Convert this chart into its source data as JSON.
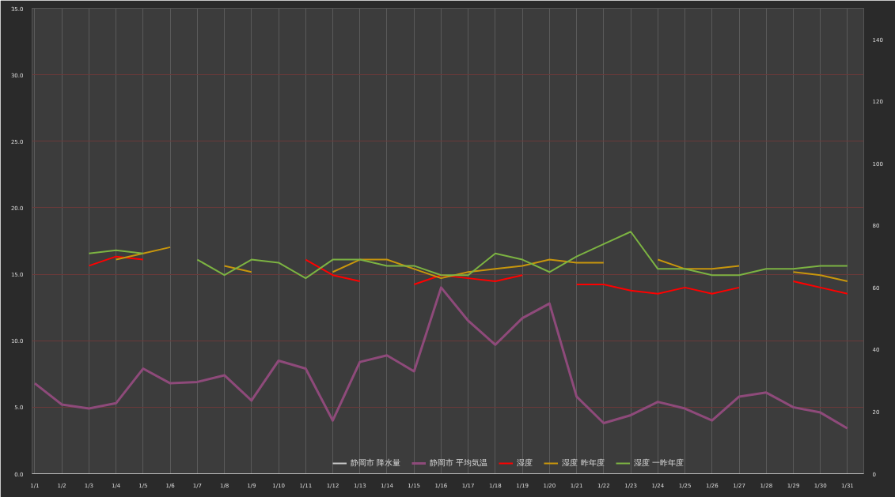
{
  "chart_data": {
    "type": "line",
    "categories": [
      "1/1",
      "1/2",
      "1/3",
      "1/4",
      "1/5",
      "1/6",
      "1/7",
      "1/8",
      "1/9",
      "1/10",
      "1/11",
      "1/12",
      "1/13",
      "1/14",
      "1/15",
      "1/16",
      "1/17",
      "1/18",
      "1/19",
      "1/20",
      "1/21",
      "1/22",
      "1/23",
      "1/24",
      "1/25",
      "1/26",
      "1/27",
      "1/28",
      "1/29",
      "1/30",
      "1/31"
    ],
    "series": [
      {
        "name": "静岡市 降水量",
        "color": "#c8c8c8",
        "values": [
          null,
          null,
          null,
          null,
          null,
          null,
          null,
          null,
          null,
          null,
          null,
          null,
          null,
          null,
          null,
          null,
          null,
          null,
          null,
          null,
          null,
          null,
          null,
          null,
          null,
          null,
          null,
          null,
          null,
          null,
          null
        ]
      },
      {
        "name": "静岡市 平均気温",
        "color": "#8e4a7a",
        "values": [
          6.8,
          5.2,
          4.9,
          5.3,
          7.9,
          6.8,
          6.9,
          7.4,
          5.5,
          8.5,
          7.9,
          4.0,
          8.4,
          8.9,
          7.7,
          14.0,
          11.5,
          9.7,
          11.7,
          12.8,
          5.8,
          3.8,
          4.4,
          5.4,
          4.9,
          4.0,
          5.8,
          6.1,
          5.0,
          4.6,
          3.4
        ]
      },
      {
        "name": "湿度",
        "color": "#ff0000",
        "axis": "y2",
        "values": [
          null,
          null,
          67,
          70,
          69,
          null,
          null,
          null,
          null,
          null,
          69,
          64,
          62,
          null,
          61,
          64,
          63,
          62,
          64,
          null,
          61,
          61,
          59,
          58,
          60,
          58,
          60,
          null,
          62,
          60,
          58
        ]
      },
      {
        "name": "湿度 昨年度",
        "color": "#c8960c",
        "axis": "y2",
        "values": [
          null,
          null,
          null,
          69,
          71,
          73,
          null,
          67,
          65,
          null,
          null,
          65,
          69,
          69,
          66,
          63,
          65,
          66,
          67,
          69,
          68,
          68,
          null,
          69,
          66,
          66,
          67,
          null,
          65,
          64,
          62
        ]
      },
      {
        "name": "湿度 一昨年度",
        "color": "#7cb342",
        "axis": "y2",
        "values": [
          null,
          null,
          71,
          72,
          71,
          null,
          69,
          64,
          69,
          68,
          63,
          69,
          69,
          67,
          67,
          64,
          64,
          71,
          69,
          65,
          70,
          74,
          78,
          66,
          66,
          64,
          64,
          66,
          66,
          67,
          67
        ]
      }
    ],
    "ylim": [
      0,
      35
    ],
    "yticks": [
      {
        "value": 0,
        "label": "0.0"
      },
      {
        "value": 5,
        "label": "5.0"
      },
      {
        "value": 10,
        "label": "10.0"
      },
      {
        "value": 15,
        "label": "15.0"
      },
      {
        "value": 20,
        "label": "20.0"
      },
      {
        "value": 25,
        "label": "25.0"
      },
      {
        "value": 30,
        "label": "30.0"
      },
      {
        "value": 35,
        "label": "35.0"
      }
    ],
    "y2lim": [
      0,
      150
    ],
    "y2ticks": [
      0,
      20,
      40,
      60,
      80,
      100,
      120,
      140
    ],
    "grid": true,
    "legend": "bottom",
    "marker": "none",
    "line_style": "solid"
  }
}
